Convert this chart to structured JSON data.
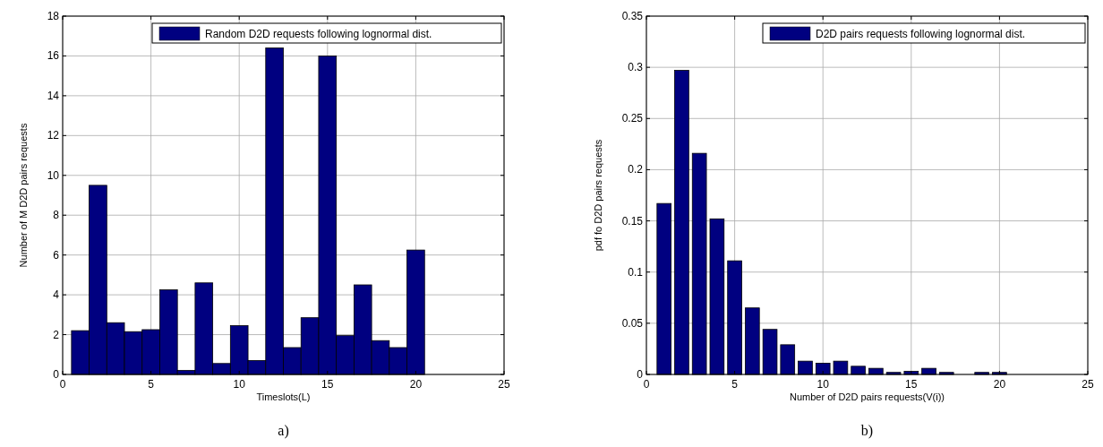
{
  "chart_data": [
    {
      "type": "histogram",
      "xlabel": "Timeslots(L)",
      "ylabel": "Number of M D2D pairs requests",
      "annotations": [
        "a)"
      ],
      "bins": [
        0.5,
        1.5,
        2.5,
        3.5,
        4.5,
        5.5,
        6.5,
        7.5,
        8.5,
        9.5,
        10.5,
        11.5,
        12.5,
        13.5,
        14.5,
        15.5,
        16.5,
        17.5,
        18.5,
        19.5,
        20.5
      ],
      "series": [
        {
          "name": "Random D2D requests following lognormal dist.",
          "color": "#000080",
          "values": [
            2.2,
            9.5,
            2.6,
            2.15,
            2.25,
            4.25,
            0.2,
            4.6,
            0.55,
            2.45,
            0.7,
            16.4,
            1.35,
            2.85,
            16,
            1.95,
            4.5,
            1.7,
            1.35,
            6.25
          ]
        }
      ],
      "xlim": [
        0,
        25
      ],
      "xticks": [
        0,
        5,
        10,
        15,
        20,
        25
      ],
      "ylim": [
        0,
        18
      ],
      "yticks": [
        0,
        2,
        4,
        6,
        8,
        10,
        12,
        14,
        16,
        18
      ],
      "grid": true,
      "legend": "top right"
    },
    {
      "type": "bar",
      "xlabel": "Number of D2D pairs requests(V(i))",
      "ylabel": "pdf fo D2D pairs requests",
      "annotations": [
        "b)"
      ],
      "x": [
        1,
        2,
        3,
        4,
        5,
        6,
        7,
        8,
        9,
        10,
        11,
        12,
        13,
        14,
        15,
        16,
        17,
        18,
        19,
        20
      ],
      "series": [
        {
          "name": "D2D pairs requests following lognormal dist.",
          "color": "#000080",
          "values": [
            0.167,
            0.297,
            0.216,
            0.152,
            0.111,
            0.065,
            0.044,
            0.029,
            0.013,
            0.011,
            0.013,
            0.008,
            0.006,
            0.002,
            0.003,
            0.006,
            0.002,
            0,
            0.002,
            0.002
          ]
        }
      ],
      "xlim": [
        0,
        25
      ],
      "xticks": [
        0,
        5,
        10,
        15,
        20,
        25
      ],
      "ylim": [
        0,
        0.35
      ],
      "yticks": [
        0,
        0.05,
        0.1,
        0.15,
        0.2,
        0.25,
        0.3,
        0.35
      ],
      "grid": true,
      "legend": "top right"
    }
  ]
}
